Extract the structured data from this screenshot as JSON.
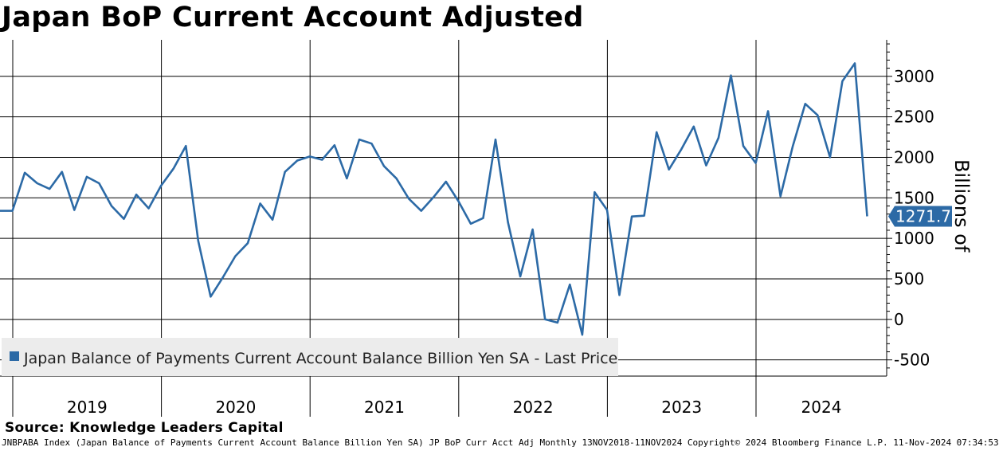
{
  "chart_data": {
    "type": "line",
    "title": "Japan BoP Current Account Adjusted",
    "ylabel": "Billions of",
    "xlabel": "",
    "ylim": [
      -700,
      3450
    ],
    "yticks": [
      -500,
      0,
      500,
      1000,
      1500,
      2000,
      2500,
      3000
    ],
    "ytick_labels": [
      "-500",
      "0",
      "500",
      "1000",
      "1500",
      "2000",
      "2500",
      "3000"
    ],
    "years": [
      "2019",
      "2020",
      "2021",
      "2022",
      "2023",
      "2024"
    ],
    "x_start": "2018-11",
    "grid": true,
    "color": "#2c6aa6",
    "legend_position": "bottom-left",
    "series": [
      {
        "name": "Japan Balance of Payments Current Account Balance Billion Yen SA - Last Price",
        "values": [
          1340,
          1340,
          1810,
          1680,
          1610,
          1820,
          1350,
          1760,
          1680,
          1400,
          1240,
          1540,
          1370,
          1650,
          1860,
          2140,
          970,
          280,
          520,
          780,
          940,
          1430,
          1230,
          1820,
          1960,
          2010,
          1970,
          2150,
          1740,
          2220,
          2170,
          1890,
          1740,
          1490,
          1340,
          1510,
          1700,
          1460,
          1180,
          1250,
          2220,
          1200,
          530,
          1110,
          0,
          -40,
          430,
          -190,
          1570,
          1350,
          300,
          1270,
          1280,
          2310,
          1850,
          2100,
          2380,
          1900,
          2240,
          3010,
          2140,
          1930,
          2570,
          1520,
          2140,
          2660,
          2520,
          2000,
          2940,
          3160,
          1271.7
        ]
      }
    ],
    "last_value_label": "1271.7"
  },
  "legend": {
    "label": "Japan Balance of Payments Current Account Balance Billion Yen SA - Last Price"
  },
  "source": "Source: Knowledge Leaders Capital",
  "footer": "JNBPABA Index (Japan Balance of Payments Current Account Balance Billion Yen SA) JP BoP Curr Acct Adj  Monthly 13NOV2018-11NOV2024 Copyright© 2024 Bloomberg Finance L.P. 11-Nov-2024 07:34:53"
}
